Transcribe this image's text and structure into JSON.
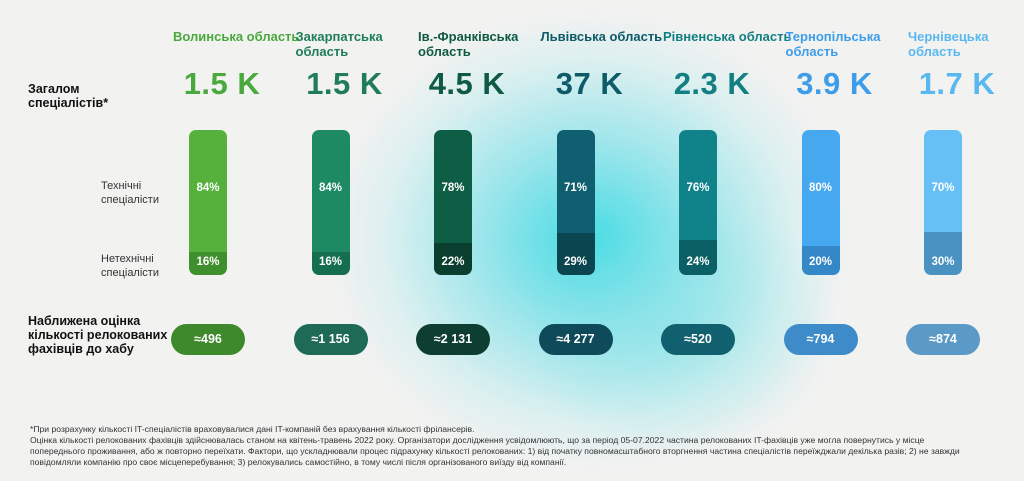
{
  "labels": {
    "total": "Загалом спеціалістів*",
    "technical": "Технічні спеціалісти",
    "nontechnical": "Нетехнічні спеціалісти",
    "relocated": "Наближена оцінка кількості релокованих фахівців до хабу"
  },
  "chart_data": {
    "type": "bar",
    "categories": [
      "Волинська область",
      "Закарпатська область",
      "Ів.-Франківська область",
      "Львівська область",
      "Рівненська область",
      "Тернопільська область",
      "Чернівецька область"
    ],
    "total_specialists": [
      "1.5 K",
      "1.5 K",
      "4.5 K",
      "37 K",
      "2.3 K",
      "3.9 K",
      "1.7 K"
    ],
    "series": [
      {
        "name": "Технічні спеціалісти",
        "values": [
          84,
          84,
          78,
          71,
          76,
          80,
          70
        ]
      },
      {
        "name": "Нетехнічні спеціалісти",
        "values": [
          16,
          16,
          22,
          29,
          24,
          20,
          30
        ]
      }
    ],
    "relocated": [
      "≈496",
      "≈1 156",
      "≈2 131",
      "≈4 277",
      "≈520",
      "≈794",
      "≈874"
    ],
    "ylim": [
      0,
      100
    ]
  },
  "colors": {
    "region_text": [
      "#4aa93c",
      "#1f7d58",
      "#0f5a42",
      "#0e5a68",
      "#127f82",
      "#3d9de8",
      "#5ab8f0"
    ],
    "tech": [
      "#55b03c",
      "#1e8a64",
      "#0d5e45",
      "#0f5f70",
      "#10828a",
      "#46a8ef",
      "#66bff5"
    ],
    "nontech": [
      "#3f8f2e",
      "#166e50",
      "#0a3e2e",
      "#0a4550",
      "#0b6066",
      "#3588c8",
      "#4a92c2"
    ],
    "pill": [
      "#3e892b",
      "#1f6a57",
      "#0e3d31",
      "#0f4a5a",
      "#106070",
      "#3d8bc8",
      "#5b9ac6"
    ]
  },
  "footnote": {
    "line1": "*При розрахунку кількості IT-спеціалістів враховувалися дані IT-компаній без врахування кількості фрілансерів.",
    "line2": "Оцінка кількості релокованих фахівців здійснювалась станом на квітень-травень 2022 року. Організатори дослідження усвідомлюють, що за період 05-07.2022 частина релокованих IT-фахівців уже могла повернутись у місце",
    "line3": "попереднього проживання, або ж повторно переїхати. Фактори, що ускладнювали процес підрахунку кількості релокованих: 1) від початку повномасштабного вторгнення частина спеціалістів переїжджали декілька разів; 2) не завжди",
    "line4": "повідомляли компанію про своє місцеперебування; 3) релокувались самостійно, в тому числі після організованого виїзду від компанії."
  }
}
